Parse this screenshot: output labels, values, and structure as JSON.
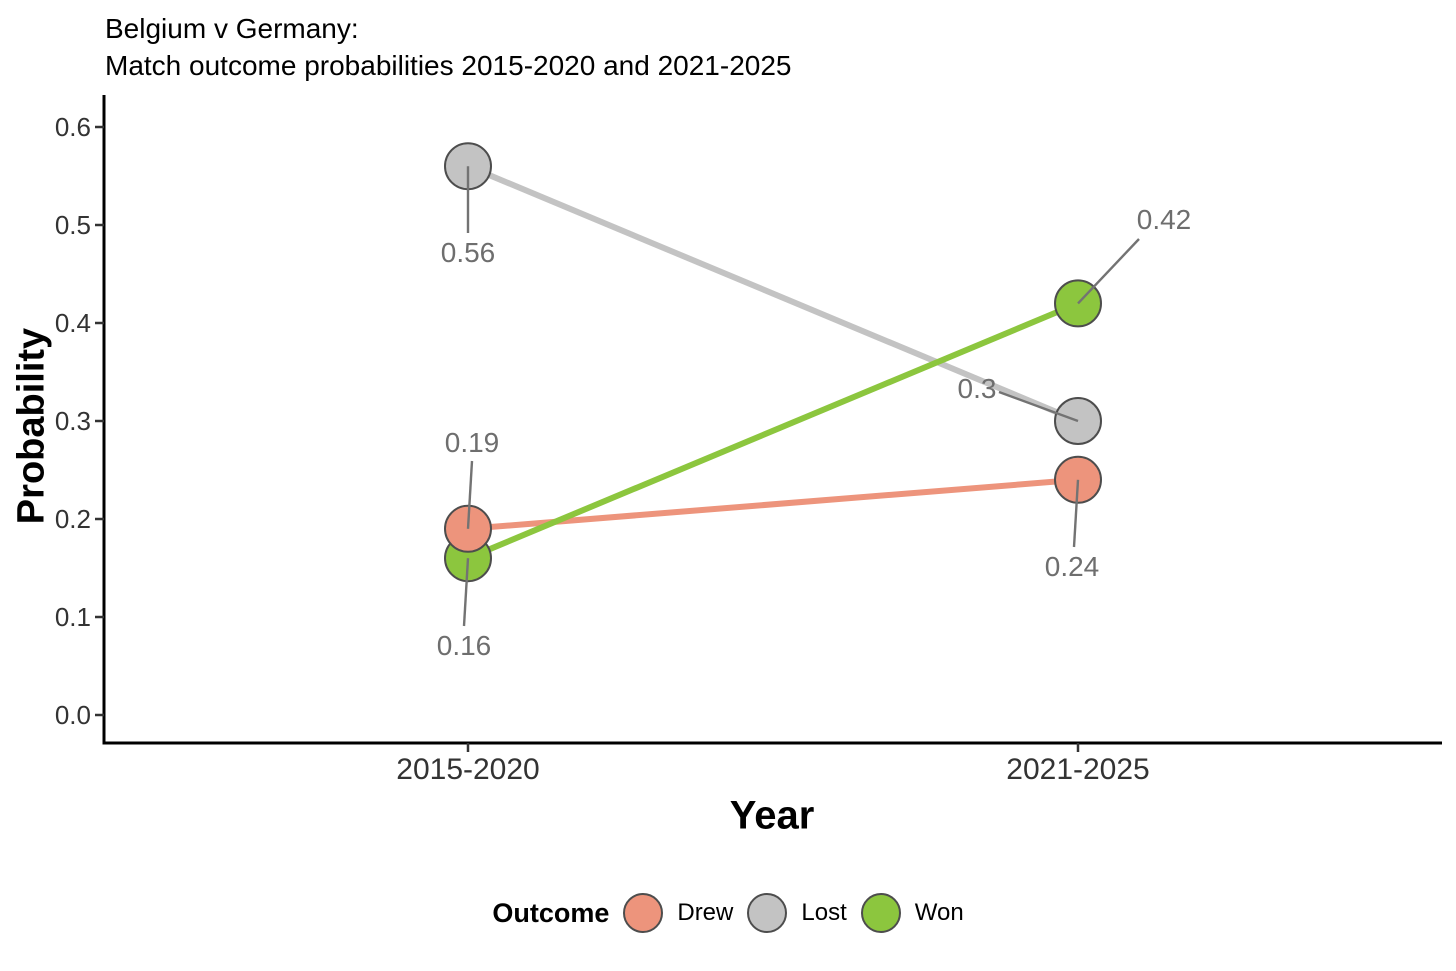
{
  "chart_data": {
    "type": "line",
    "title": "Belgium v Germany: Match outcome probabilities 2015-2020 and 2021-2025",
    "title_lines": [
      "Belgium v Germany:",
      "Match outcome probabilities 2015-2020 and 2021-2025"
    ],
    "xlabel": "Year",
    "ylabel": "Probability",
    "categories": [
      "2015-2020",
      "2021-2025"
    ],
    "series": [
      {
        "name": "Drew",
        "color": "#ED947C",
        "values": [
          0.19,
          0.24
        ],
        "point_labels": [
          "0.19",
          "0.24"
        ]
      },
      {
        "name": "Lost",
        "color": "#C3C3C3",
        "values": [
          0.56,
          0.3
        ],
        "point_labels": [
          "0.56",
          "0.3"
        ]
      },
      {
        "name": "Won",
        "color": "#8CC63E",
        "values": [
          0.16,
          0.42
        ],
        "point_labels": [
          "0.16",
          "0.42"
        ]
      }
    ],
    "ylim": [
      0.0,
      0.6
    ],
    "yticks": [
      "0.0",
      "0.1",
      "0.2",
      "0.3",
      "0.4",
      "0.5",
      "0.6"
    ],
    "grid": false,
    "legend_title": "Outcome",
    "legend_position": "bottom",
    "colors": {
      "axis_line": "#000000",
      "tick_text": "#333333",
      "point_stroke": "#4D4D4D",
      "data_label_text": "#6E6E6E",
      "leader_line": "#737373",
      "background": "#ffffff"
    }
  }
}
